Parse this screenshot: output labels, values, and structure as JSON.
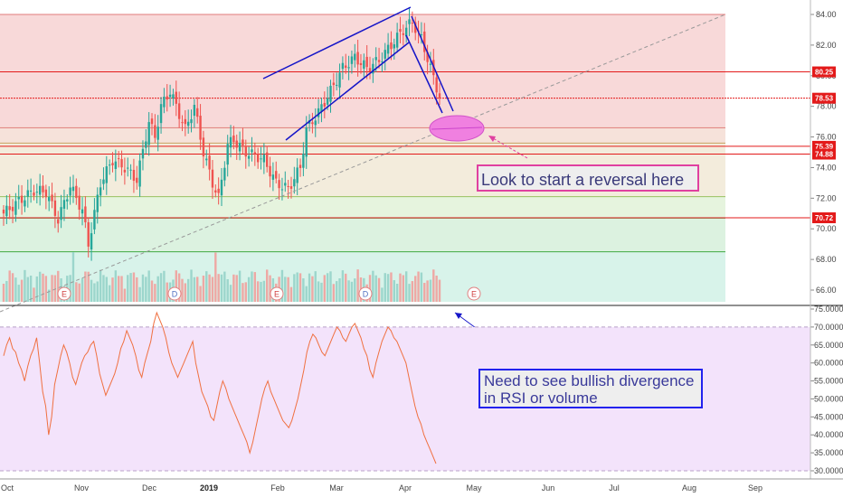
{
  "chart_data": [
    {
      "type": "candlestick",
      "y_axis_ticks": [
        "84.00",
        "82.00",
        "80.00",
        "78.00",
        "76.00",
        "74.00",
        "72.00",
        "70.00",
        "68.00",
        "66.00"
      ],
      "ylim": [
        64.5,
        84.6
      ],
      "x_axis_labels": [
        {
          "label": "Oct",
          "bold": false
        },
        {
          "label": "Nov",
          "bold": false
        },
        {
          "label": "Dec",
          "bold": false
        },
        {
          "label": "2019",
          "bold": true
        },
        {
          "label": "Feb",
          "bold": false
        },
        {
          "label": "Mar",
          "bold": false
        },
        {
          "label": "Apr",
          "bold": false
        },
        {
          "label": "May",
          "bold": false
        },
        {
          "label": "Jun",
          "bold": false
        },
        {
          "label": "Jul",
          "bold": false
        },
        {
          "label": "Aug",
          "bold": false
        },
        {
          "label": "Sep",
          "bold": false
        }
      ],
      "price_lines": [
        {
          "label": "80.25",
          "value": 80.25,
          "color": "#e31a1a"
        },
        {
          "label": "78.53",
          "value": 78.53,
          "color": "#e31a1a"
        },
        {
          "label": "75.39",
          "value": 75.39,
          "color": "#e31a1a"
        },
        {
          "label": "74.88",
          "value": 74.88,
          "color": "#e31a1a"
        },
        {
          "label": "70.72",
          "value": 70.72,
          "color": "#e31a1a"
        }
      ],
      "fib_levels": [
        84.0,
        76.6,
        75.6,
        72.1,
        70.7,
        68.5
      ],
      "event_markers": [
        "E",
        "D",
        "E",
        "D",
        "E"
      ],
      "colors": {
        "up": "#26a69a",
        "down": "#ef5350",
        "trend": "#1515c8",
        "ellipse": "#f080e0"
      }
    },
    {
      "type": "line",
      "series": [
        {
          "values": [
            62,
            65,
            67,
            64,
            63,
            60,
            58,
            55,
            59,
            62,
            64,
            67,
            60,
            52,
            48,
            40,
            45,
            54,
            58,
            62,
            65,
            63,
            60,
            56,
            54,
            57,
            60,
            62,
            63,
            65,
            66,
            62,
            57,
            54,
            51,
            53,
            55,
            57,
            60,
            64,
            66,
            69,
            67,
            65,
            62,
            58,
            56,
            60,
            63,
            66,
            71,
            74,
            72,
            70,
            67,
            63,
            60,
            58,
            56,
            58,
            60,
            62,
            64,
            66,
            60,
            56,
            52,
            50,
            48,
            45,
            44,
            48,
            52,
            55,
            53,
            50,
            48,
            46,
            44,
            42,
            40,
            38,
            35,
            38,
            42,
            46,
            50,
            53,
            55,
            52,
            50,
            48,
            46,
            44,
            43,
            42,
            44,
            47,
            50,
            54,
            58,
            63,
            66,
            68,
            67,
            65,
            63,
            62,
            64,
            66,
            68,
            70,
            69,
            67,
            66,
            68,
            70,
            71,
            69,
            67,
            64,
            62,
            58,
            56,
            60,
            63,
            66,
            68,
            70,
            69,
            67,
            66,
            64,
            62,
            60,
            56,
            52,
            48,
            45,
            43,
            40,
            38,
            36,
            34,
            32
          ]
        }
      ],
      "y_axis_ticks": [
        "75.0000",
        "70.0000",
        "65.0000",
        "60.0000",
        "55.0000",
        "50.0000",
        "45.0000",
        "40.0000",
        "35.0000",
        "30.0000"
      ],
      "ylim": [
        28.5,
        76
      ],
      "band": [
        30,
        70
      ]
    }
  ],
  "annotations": {
    "reversal": "Look to start a reversal here",
    "divergence": "Need to see bullish divergence in RSI or volume"
  }
}
